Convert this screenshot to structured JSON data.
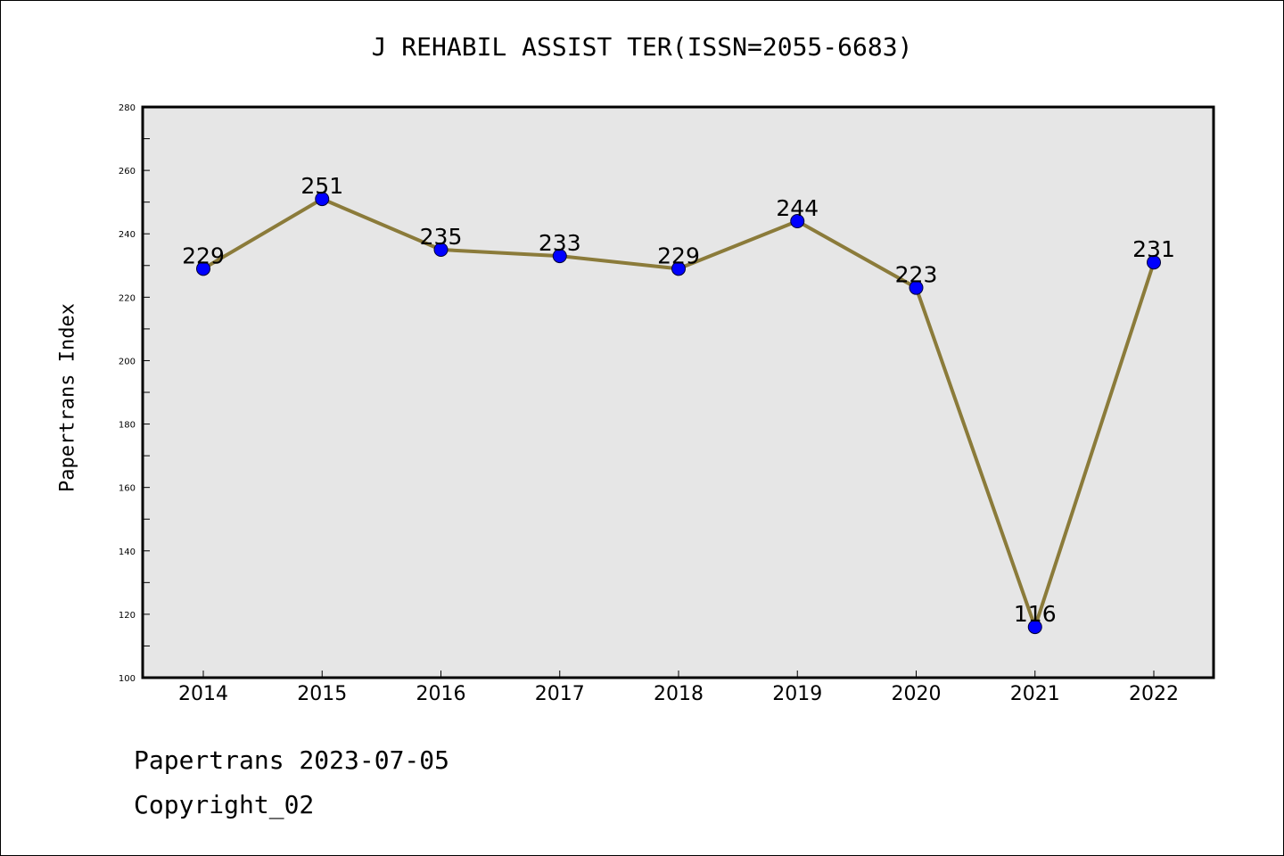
{
  "title": "J REHABIL ASSIST TER(ISSN=2055-6683)",
  "footer": {
    "date_line": "Papertrans 2023-07-05",
    "copyright_line": "Copyright_02"
  },
  "colors": {
    "line": "#8B7B3A",
    "marker": "#0000FF",
    "plot_background": "#E6E6E6",
    "axes": "#000000"
  },
  "chart_data": {
    "type": "line",
    "title": "J REHABIL ASSIST TER(ISSN=2055-6683)",
    "xlabel": "",
    "ylabel": "Papertrans Index",
    "categories": [
      "2014",
      "2015",
      "2016",
      "2017",
      "2018",
      "2019",
      "2020",
      "2021",
      "2022"
    ],
    "series": [
      {
        "values": [
          229,
          251,
          235,
          233,
          229,
          244,
          223,
          116,
          231
        ],
        "data_labels": [
          "229",
          "251",
          "235",
          "233",
          "229",
          "244",
          "223",
          "116",
          "231"
        ]
      }
    ],
    "ylim": [
      100,
      280
    ],
    "yticks": [
      100,
      120,
      140,
      160,
      180,
      200,
      220,
      240,
      260,
      280
    ],
    "ytick_labels": [
      "100",
      "120",
      "140",
      "160",
      "180",
      "200",
      "220",
      "240",
      "260",
      "280"
    ],
    "grid": false,
    "legend": "none"
  }
}
